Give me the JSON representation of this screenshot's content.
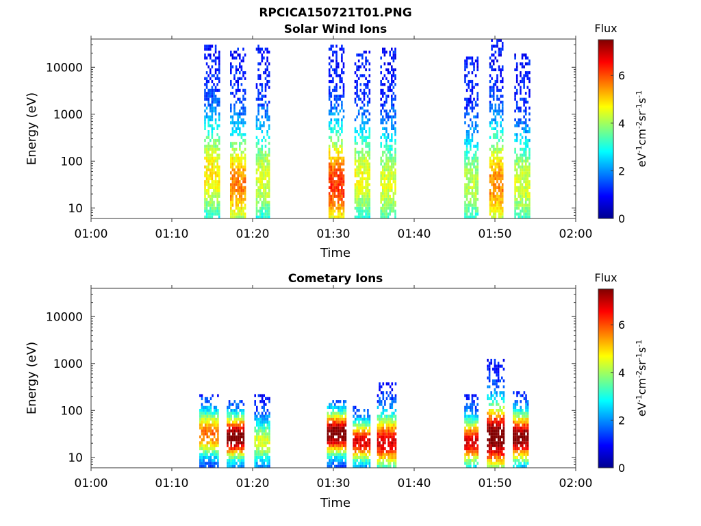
{
  "figure": {
    "title": "RPCICA150721T01.PNG"
  },
  "colorbar": {
    "label": "Flux",
    "units_main": "eV",
    "units_sup1": "-1",
    "units_mid": "cm",
    "units_sup2": "-2",
    "units_sr": "sr",
    "units_sup3": "-1",
    "units_s": "s",
    "units_sup4": "-1",
    "ticks": [
      "0",
      "2",
      "4",
      "6"
    ],
    "range": [
      0,
      7.5
    ],
    "colormap": "jet"
  },
  "chart_data": [
    {
      "type": "heatmap",
      "title": "Solar Wind Ions",
      "xlabel": "Time",
      "ylabel": "Energy (eV)",
      "x_ticks": [
        "01:00",
        "01:10",
        "01:20",
        "01:30",
        "01:40",
        "01:50",
        "02:00"
      ],
      "x_range_minutes": [
        0,
        60
      ],
      "y_ticks": [
        "10",
        "100",
        "1000",
        "10000"
      ],
      "ylim": [
        6,
        40000
      ],
      "yscale": "log",
      "bursts": [
        {
          "t_start": 14.0,
          "t_end": 15.8,
          "e_min": 6,
          "e_max": 30000,
          "peak_flux": 3.8,
          "peak_energy": 50
        },
        {
          "t_start": 17.2,
          "t_end": 19.0,
          "e_min": 6,
          "e_max": 25000,
          "peak_flux": 4.6,
          "peak_energy": 30
        },
        {
          "t_start": 20.4,
          "t_end": 22.0,
          "e_min": 6,
          "e_max": 28000,
          "peak_flux": 3.4,
          "peak_energy": 40
        },
        {
          "t_start": 29.4,
          "t_end": 31.2,
          "e_min": 6,
          "e_max": 30000,
          "peak_flux": 5.2,
          "peak_energy": 30
        },
        {
          "t_start": 32.6,
          "t_end": 34.4,
          "e_min": 6,
          "e_max": 20000,
          "peak_flux": 3.6,
          "peak_energy": 40
        },
        {
          "t_start": 35.8,
          "t_end": 37.6,
          "e_min": 6,
          "e_max": 24000,
          "peak_flux": 3.4,
          "peak_energy": 30
        },
        {
          "t_start": 46.2,
          "t_end": 47.9,
          "e_min": 6,
          "e_max": 16000,
          "peak_flux": 3.2,
          "peak_energy": 30
        },
        {
          "t_start": 49.3,
          "t_end": 51.0,
          "e_min": 6,
          "e_max": 35000,
          "peak_flux": 4.6,
          "peak_energy": 30
        },
        {
          "t_start": 52.4,
          "t_end": 54.2,
          "e_min": 6,
          "e_max": 18000,
          "peak_flux": 3.4,
          "peak_energy": 30
        }
      ]
    },
    {
      "type": "heatmap",
      "title": "Cometary Ions",
      "xlabel": "Time",
      "ylabel": "Energy (eV)",
      "x_ticks": [
        "01:00",
        "01:10",
        "01:20",
        "01:30",
        "01:40",
        "01:50",
        "02:00"
      ],
      "x_range_minutes": [
        0,
        60
      ],
      "y_ticks": [
        "10",
        "100",
        "1000",
        "10000"
      ],
      "ylim": [
        6,
        40000
      ],
      "yscale": "log",
      "bursts": [
        {
          "t_start": 13.4,
          "t_end": 15.8,
          "e_min": 6,
          "e_max": 200,
          "peak_flux": 4.8,
          "peak_energy": 30
        },
        {
          "t_start": 16.8,
          "t_end": 19.0,
          "e_min": 6,
          "e_max": 160,
          "peak_flux": 6.8,
          "peak_energy": 25
        },
        {
          "t_start": 20.2,
          "t_end": 22.0,
          "e_min": 6,
          "e_max": 200,
          "peak_flux": 3.4,
          "peak_energy": 20
        },
        {
          "t_start": 29.2,
          "t_end": 31.6,
          "e_min": 6,
          "e_max": 150,
          "peak_flux": 6.8,
          "peak_energy": 30
        },
        {
          "t_start": 32.4,
          "t_end": 34.6,
          "e_min": 6,
          "e_max": 120,
          "peak_flux": 5.8,
          "peak_energy": 20
        },
        {
          "t_start": 35.4,
          "t_end": 37.8,
          "e_min": 6,
          "e_max": 350,
          "peak_flux": 5.8,
          "peak_energy": 20
        },
        {
          "t_start": 46.2,
          "t_end": 47.8,
          "e_min": 6,
          "e_max": 200,
          "peak_flux": 5.8,
          "peak_energy": 20
        },
        {
          "t_start": 49.0,
          "t_end": 51.0,
          "e_min": 6,
          "e_max": 1100,
          "peak_flux": 6.8,
          "peak_energy": 25
        },
        {
          "t_start": 52.2,
          "t_end": 54.0,
          "e_min": 6,
          "e_max": 250,
          "peak_flux": 6.6,
          "peak_energy": 25
        }
      ]
    }
  ]
}
